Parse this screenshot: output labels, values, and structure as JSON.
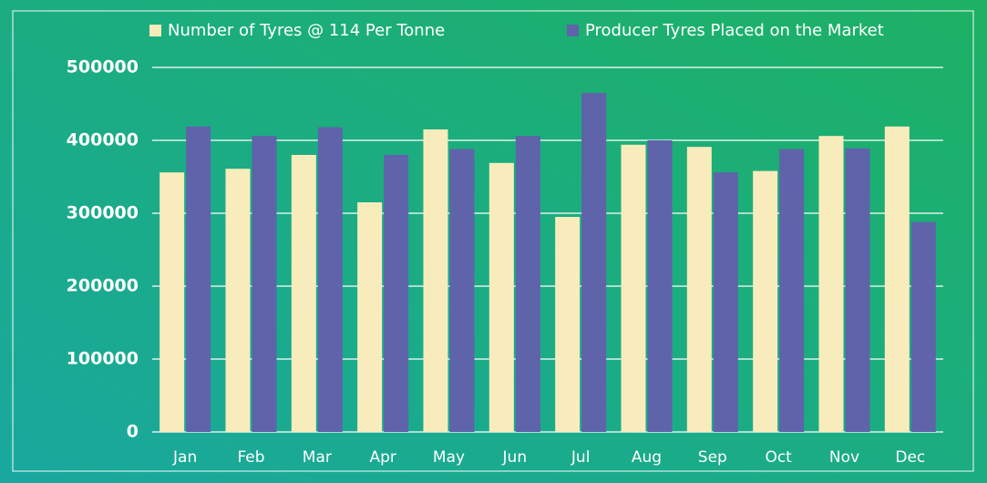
{
  "chart_data": {
    "type": "bar",
    "categories": [
      "Jan",
      "Feb",
      "Mar",
      "Apr",
      "May",
      "Jun",
      "Jul",
      "Aug",
      "Sep",
      "Oct",
      "Nov",
      "Dec"
    ],
    "series": [
      {
        "name": "Number of Tyres @ 114 Per Tonne",
        "color": "#f9ecbc",
        "values": [
          356000,
          361000,
          380000,
          315000,
          415000,
          369000,
          295000,
          394000,
          391000,
          358000,
          406000,
          419000
        ]
      },
      {
        "name": "Producer Tyres Placed on the Market",
        "color": "#5e63aa",
        "values": [
          419000,
          406000,
          418000,
          380000,
          388000,
          406000,
          465000,
          400000,
          356000,
          388000,
          389000,
          288000
        ]
      }
    ],
    "ylim": [
      0,
      500000
    ],
    "yticks": [
      0,
      100000,
      200000,
      300000,
      400000,
      500000
    ],
    "grid": true,
    "legend": "top"
  }
}
